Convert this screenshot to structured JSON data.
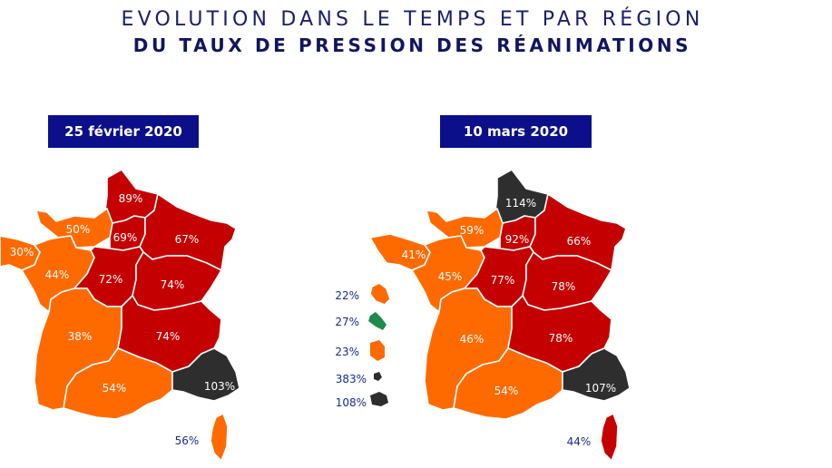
{
  "title": {
    "line1": "EVOLUTION DANS LE TEMPS ET PAR RÉGION",
    "line2": "DU TAUX DE PRESSION DES RÉANIMATIONS"
  },
  "colors": {
    "orange": "#ff6a00",
    "red": "#c40000",
    "black": "#2e2e2e",
    "green": "#1e8a4c",
    "navy": "#0c0f8a"
  },
  "maps": [
    {
      "date": "25 février 2020",
      "regions": {
        "hauts_de_france": {
          "label": "89%",
          "level": "red"
        },
        "normandie": {
          "label": "50%",
          "level": "orange"
        },
        "ile_de_france": {
          "label": "69%",
          "level": "red"
        },
        "grand_est": {
          "label": "67%",
          "level": "red"
        },
        "bretagne": {
          "label": "30%",
          "level": "orange"
        },
        "pays_de_la_loire": {
          "label": "44%",
          "level": "orange"
        },
        "centre_val_de_loire": {
          "label": "72%",
          "level": "red"
        },
        "bourgogne_franche_comte": {
          "label": "74%",
          "level": "red"
        },
        "nouvelle_aquitaine": {
          "label": "38%",
          "level": "orange"
        },
        "auvergne_rhone_alpes": {
          "label": "74%",
          "level": "red"
        },
        "occitanie": {
          "label": "54%",
          "level": "orange"
        },
        "paca": {
          "label": "103%",
          "level": "black"
        },
        "corse": {
          "label": "56%",
          "level": "orange"
        }
      }
    },
    {
      "date": "10 mars 2020",
      "regions": {
        "hauts_de_france": {
          "label": "114%",
          "level": "black"
        },
        "normandie": {
          "label": "59%",
          "level": "orange"
        },
        "ile_de_france": {
          "label": "92%",
          "level": "red"
        },
        "grand_est": {
          "label": "66%",
          "level": "red"
        },
        "bretagne": {
          "label": "41%",
          "level": "orange"
        },
        "pays_de_la_loire": {
          "label": "45%",
          "level": "orange"
        },
        "centre_val_de_loire": {
          "label": "77%",
          "level": "red"
        },
        "bourgogne_franche_comte": {
          "label": "78%",
          "level": "red"
        },
        "nouvelle_aquitaine": {
          "label": "46%",
          "level": "orange"
        },
        "auvergne_rhone_alpes": {
          "label": "78%",
          "level": "red"
        },
        "occitanie": {
          "label": "54%",
          "level": "orange"
        },
        "paca": {
          "label": "107%",
          "level": "black"
        },
        "corse": {
          "label": "44%",
          "level": "red"
        }
      },
      "overseas": [
        {
          "label": "22%",
          "level": "orange"
        },
        {
          "label": "27%",
          "level": "green"
        },
        {
          "label": "23%",
          "level": "orange"
        },
        {
          "label": "383%",
          "level": "black"
        },
        {
          "label": "108%",
          "level": "black"
        }
      ]
    }
  ]
}
